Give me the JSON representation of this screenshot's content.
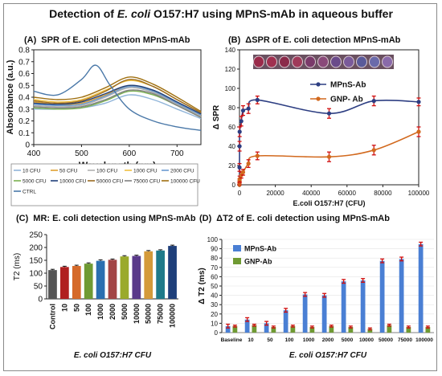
{
  "title": {
    "pre": "Detection of ",
    "species": "E. coli",
    "post": " O157:H7 using MPnS-mAb in aqueous buffer"
  },
  "chart_data": [
    {
      "panel": "(A)",
      "type": "line",
      "title": "SPR of E. coli detection MPnS-mAb",
      "xlabel": "Wavelength (nm)",
      "ylabel": "Absorbance (a.u.)",
      "xlim": [
        400,
        750
      ],
      "ylim": [
        0,
        0.8
      ],
      "xticks": [
        400,
        500,
        600,
        700
      ],
      "yticks": [
        0,
        0.1,
        0.2,
        0.3,
        0.4,
        0.5,
        0.6,
        0.7,
        0.8
      ],
      "legend": "below",
      "series": [
        {
          "name": "10 CFU",
          "color": "#8fb4d9",
          "x": [
            400,
            450,
            500,
            550,
            600,
            650,
            700,
            750
          ],
          "y": [
            0.3,
            0.3,
            0.31,
            0.35,
            0.42,
            0.38,
            0.3,
            0.22
          ]
        },
        {
          "name": "50 CFU",
          "color": "#e0a030",
          "x": [
            400,
            450,
            500,
            550,
            600,
            650,
            700,
            750
          ],
          "y": [
            0.36,
            0.34,
            0.35,
            0.42,
            0.5,
            0.45,
            0.35,
            0.25
          ]
        },
        {
          "name": "100 CFU",
          "color": "#b0b0b0",
          "x": [
            400,
            450,
            500,
            550,
            600,
            650,
            700,
            750
          ],
          "y": [
            0.33,
            0.32,
            0.33,
            0.4,
            0.48,
            0.44,
            0.34,
            0.24
          ]
        },
        {
          "name": "1000 CFU",
          "color": "#f0c040",
          "x": [
            400,
            450,
            500,
            550,
            600,
            650,
            700,
            750
          ],
          "y": [
            0.38,
            0.36,
            0.38,
            0.46,
            0.54,
            0.49,
            0.38,
            0.27
          ]
        },
        {
          "name": "2000 CFU",
          "color": "#6a9ad0",
          "x": [
            400,
            450,
            500,
            550,
            600,
            650,
            700,
            750
          ],
          "y": [
            0.34,
            0.33,
            0.34,
            0.41,
            0.49,
            0.45,
            0.35,
            0.25
          ]
        },
        {
          "name": "5000 CFU",
          "color": "#7ab050",
          "x": [
            400,
            450,
            500,
            550,
            600,
            650,
            700,
            750
          ],
          "y": [
            0.31,
            0.3,
            0.31,
            0.37,
            0.45,
            0.42,
            0.33,
            0.23
          ]
        },
        {
          "name": "10000 CFU",
          "color": "#1f3f7a",
          "x": [
            400,
            450,
            500,
            550,
            600,
            650,
            700,
            750
          ],
          "y": [
            0.35,
            0.34,
            0.36,
            0.43,
            0.5,
            0.46,
            0.36,
            0.26
          ]
        },
        {
          "name": "50000 CFU",
          "color": "#9a6a20",
          "x": [
            400,
            450,
            500,
            550,
            600,
            650,
            700,
            750
          ],
          "y": [
            0.37,
            0.35,
            0.37,
            0.45,
            0.55,
            0.49,
            0.38,
            0.27
          ]
        },
        {
          "name": "75000 CFU",
          "color": "#808080",
          "x": [
            400,
            450,
            500,
            550,
            600,
            650,
            700,
            750
          ],
          "y": [
            0.32,
            0.31,
            0.32,
            0.38,
            0.46,
            0.43,
            0.33,
            0.23
          ]
        },
        {
          "name": "100000 CFU",
          "color": "#a07010",
          "x": [
            400,
            450,
            500,
            550,
            600,
            650,
            700,
            750
          ],
          "y": [
            0.4,
            0.38,
            0.4,
            0.48,
            0.57,
            0.51,
            0.4,
            0.28
          ]
        },
        {
          "name": "CTRL",
          "color": "#4a78a8",
          "x": [
            400,
            450,
            500,
            530,
            560,
            600,
            650,
            700,
            750
          ],
          "y": [
            0.45,
            0.42,
            0.55,
            0.67,
            0.5,
            0.3,
            0.2,
            0.15,
            0.12
          ]
        }
      ]
    },
    {
      "panel": "(B)",
      "type": "line",
      "title": "ΔSPR of E. coli detection MPnS-mAb",
      "xlabel": "E.coli O157:H7 (CFU)",
      "ylabel": "Δ SPR",
      "xlim": [
        0,
        100000
      ],
      "ylim": [
        0,
        140
      ],
      "xticks": [
        0,
        20000,
        40000,
        60000,
        80000,
        100000
      ],
      "yticks": [
        0,
        20,
        40,
        60,
        80,
        100,
        120,
        140
      ],
      "legend": "top-right",
      "series": [
        {
          "name": "MPnS-Ab",
          "color": "#2d3e82",
          "x": [
            0,
            10,
            50,
            100,
            1000,
            2000,
            5000,
            10000,
            50000,
            75000,
            100000
          ],
          "y": [
            0,
            18,
            40,
            55,
            66,
            77,
            79,
            88,
            74,
            87,
            86
          ],
          "err": [
            4,
            4,
            5,
            5,
            5,
            5,
            5,
            4,
            5,
            5,
            4
          ]
        },
        {
          "name": "GNP- Ab",
          "color": "#d2691e",
          "x": [
            0,
            10,
            50,
            100,
            1000,
            2000,
            5000,
            10000,
            50000,
            75000,
            100000
          ],
          "y": [
            0,
            2,
            4,
            6,
            10,
            13,
            22,
            30,
            29,
            36,
            55
          ],
          "err": [
            2,
            2,
            2,
            3,
            3,
            3,
            4,
            4,
            5,
            5,
            5
          ]
        }
      ]
    },
    {
      "panel": "(C)",
      "type": "bar",
      "title": "MR: E. coli detection using MPnS-mAb",
      "xlabel": "E. coli O157:H7 CFU",
      "ylabel": "T2 (ms)",
      "ylim": [
        0,
        250
      ],
      "yticks": [
        0,
        50,
        100,
        150,
        200,
        250
      ],
      "categories": [
        "Control",
        "10",
        "50",
        "100",
        "1000",
        "2000",
        "5000",
        "10000",
        "50000",
        "75000",
        "100000"
      ],
      "values": [
        112,
        124,
        128,
        137,
        148,
        152,
        165,
        167,
        185,
        188,
        206
      ],
      "err": [
        3,
        3,
        3,
        3,
        4,
        3,
        3,
        3,
        3,
        3,
        3
      ],
      "colors": [
        "#555555",
        "#b02020",
        "#d56a2a",
        "#6f9a33",
        "#2a6fb0",
        "#a24545",
        "#9aaa2b",
        "#5a3a8a",
        "#d49a3a",
        "#1f7a8a",
        "#1f3f7a"
      ]
    },
    {
      "panel": "(D)",
      "type": "bar",
      "title": "ΔT2 of E. coli detection using MPnS-mAb",
      "xlabel": "E. coli O157:H7 CFU",
      "ylabel": "Δ T2 (ms)",
      "ylim": [
        0,
        100
      ],
      "yticks": [
        0,
        10,
        20,
        30,
        40,
        50,
        60,
        70,
        80,
        90,
        100
      ],
      "legend": "top-left",
      "categories": [
        "Baseline",
        "10",
        "50",
        "100",
        "1000",
        "2000",
        "5000",
        "10000",
        "50000",
        "75000",
        "100000"
      ],
      "series": [
        {
          "name": "MPnS-Ab",
          "color": "#4a7fd4",
          "values": [
            7,
            14,
            10,
            24,
            41,
            40,
            55,
            56,
            77,
            79,
            95
          ],
          "err": [
            2,
            2,
            2,
            2,
            2,
            2,
            2,
            2,
            2,
            2,
            2
          ]
        },
        {
          "name": "GNP-Ab",
          "color": "#6f9a33",
          "values": [
            7,
            8,
            6,
            7,
            6,
            7,
            6,
            4,
            8,
            6,
            6
          ],
          "err": [
            1,
            1,
            1,
            1,
            1,
            1,
            1,
            1,
            1,
            1,
            1
          ]
        }
      ]
    }
  ]
}
